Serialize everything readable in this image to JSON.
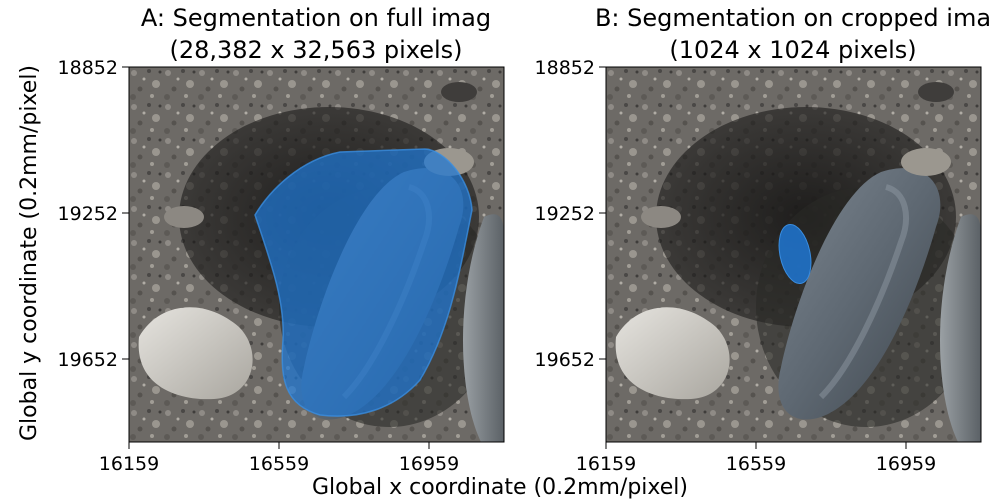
{
  "figure": {
    "xlabel": "Global x coordinate (0.2mm/pixel)",
    "ylabel": "Global y coordinate (0.2mm/pixel)"
  },
  "chart_data": [
    {
      "type": "image",
      "title_line1": "A: Segmentation on full imag",
      "title_line2": "(28,382 x 32,563 pixels)",
      "x_ticks": [
        "16159",
        "16559",
        "16959"
      ],
      "y_ticks": [
        "18852",
        "19252",
        "19652"
      ],
      "xlim": [
        16159,
        17159
      ],
      "ylim": [
        19852,
        18852
      ],
      "mask_color": "#1f77d4",
      "mask_region": "large rock and shadow area"
    },
    {
      "type": "image",
      "title_line1": "B: Segmentation on cropped ima",
      "title_line2": "(1024 x 1024 pixels)",
      "x_ticks": [
        "16159",
        "16559",
        "16959"
      ],
      "y_ticks": [
        "18852",
        "19252",
        "19652"
      ],
      "xlim": [
        16159,
        17159
      ],
      "ylim": [
        19852,
        18852
      ],
      "mask_color": "#1f77d4",
      "mask_region": "small oval"
    }
  ]
}
